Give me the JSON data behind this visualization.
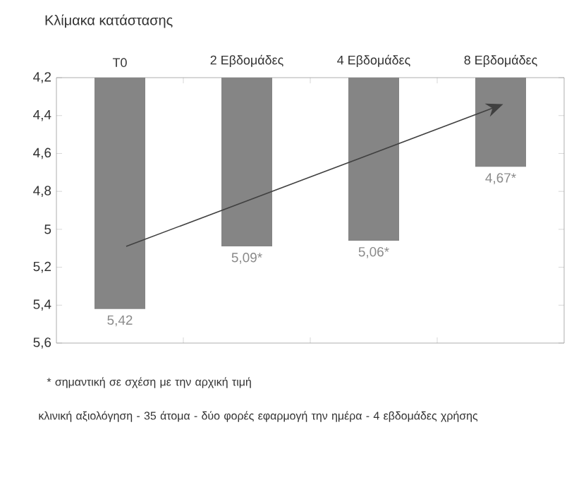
{
  "chart_data": {
    "type": "bar",
    "ylabel": "Κλίμακα κατάστασης",
    "categories": [
      "T0",
      "2 Εβδομάδες",
      "4 Εβδομάδες",
      "8 Εβδομάδες"
    ],
    "values": [
      5.42,
      5.09,
      5.06,
      4.67
    ],
    "value_labels": [
      "5,42",
      "5,09*",
      "5,06*",
      "4,67*"
    ],
    "color": "#858585",
    "ylim": [
      5.6,
      4.2
    ],
    "yticks": [
      {
        "value": 4.2,
        "label": "4,2"
      },
      {
        "value": 4.4,
        "label": "4,4"
      },
      {
        "value": 4.6,
        "label": "4,6"
      },
      {
        "value": 4.8,
        "label": "4,8"
      },
      5,
      {
        "value": 5.2,
        "label": "5,2"
      },
      {
        "value": 5.4,
        "label": "5,4"
      },
      {
        "value": 5.6,
        "label": "5,6"
      }
    ],
    "annotations": [
      "* σημαντική σε σχέση με την αρχική τιμή",
      "κλινική αξιολόγηση - 35 άτομα - δύο φορές εφαρμογή την ημέρα - 4 εβδομάδες χρήσης"
    ]
  }
}
